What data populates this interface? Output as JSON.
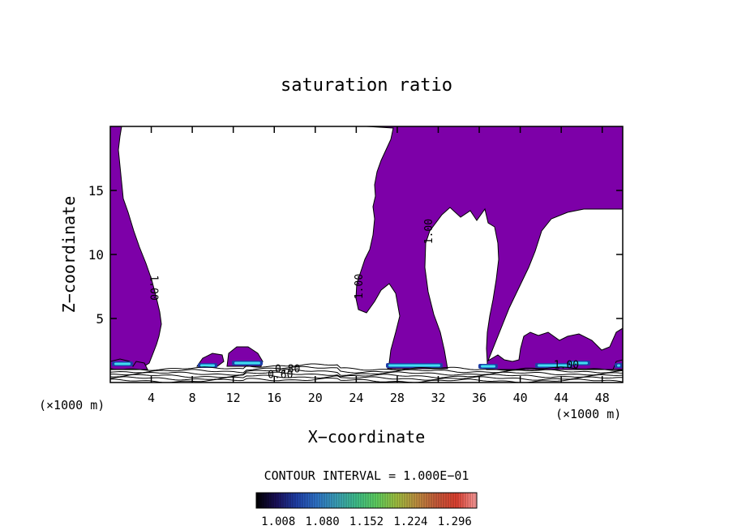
{
  "chart_data": {
    "type": "heatmap",
    "title": "saturation ratio",
    "xlabel": "X−coordinate",
    "ylabel": "Z−coordinate",
    "x_units_left": "(×1000 m)",
    "x_units_right": "(×1000 m)",
    "xlim": [
      0,
      50
    ],
    "ylim": [
      0,
      20
    ],
    "x_ticks": [
      4,
      8,
      12,
      16,
      20,
      24,
      28,
      32,
      36,
      40,
      44,
      48
    ],
    "y_ticks": [
      5,
      10,
      15
    ],
    "contour_interval_text": "CONTOUR INTERVAL = 1.000E−01",
    "colorbar": {
      "tick_labels": [
        "1.008",
        "1.080",
        "1.152",
        "1.224",
        "1.296"
      ],
      "min": 0.972,
      "max": 1.332,
      "colors": [
        "#000000",
        "#1a0f5a",
        "#1f3fa8",
        "#2f73c8",
        "#3aa0b8",
        "#3fc08a",
        "#5fd060",
        "#a0c040",
        "#c09040",
        "#c85a3a",
        "#e04030",
        "#ffa0a0"
      ]
    },
    "contour_labels": [
      {
        "text": "1.00",
        "x": 3.9,
        "z": 7.4,
        "angle": 90
      },
      {
        "text": "1.00",
        "x": 24.6,
        "z": 7.5,
        "angle": -90
      },
      {
        "text": "1.00",
        "x": 31.4,
        "z": 11.8,
        "angle": -90
      },
      {
        "text": "1.00",
        "x": 44.5,
        "z": 1.1,
        "angle": 0
      },
      {
        "text": "0.80",
        "x": 17.3,
        "z": 0.8,
        "angle": 0
      },
      {
        "text": "0.60",
        "x": 16.6,
        "z": 0.35,
        "angle": 0
      }
    ],
    "supersaturated_color": "#7d00a8"
  }
}
